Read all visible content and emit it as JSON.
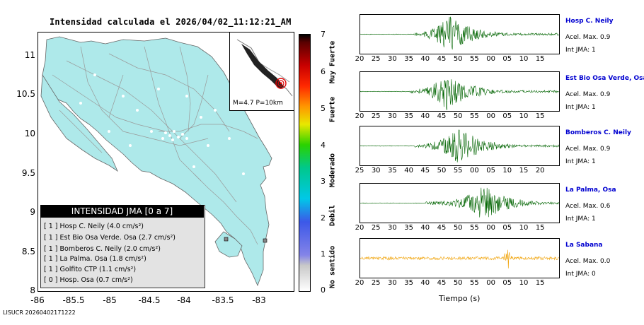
{
  "title": "Intensidad calculada el 2026/04/02_11:12:21_AM",
  "footer": "LISUCR 20260402171222",
  "map": {
    "y_ticks": [
      "11",
      "10.5",
      "10",
      "9.5",
      "9",
      "8.5",
      "8"
    ],
    "x_ticks": [
      "-86",
      "-85.5",
      "-85",
      "-84.5",
      "-84",
      "-83.5",
      "-83"
    ],
    "inset_label": "M=4.7 P=10km",
    "colors": {
      "land": "#aee9ea",
      "road": "#9a9a9a",
      "epicenter": "#e00000"
    }
  },
  "legend": {
    "header": "INTENSIDAD JMA [0 a 7]",
    "rows": [
      {
        "label": "[ 1 ]  Hosp C. Neily (4.0 cm/s²)"
      },
      {
        "label": "[ 1 ]  Est Bio Osa Verde. Osa (2.7 cm/s²)"
      },
      {
        "label": "[ 1 ]  Bomberos C. Neily (2.0 cm/s²)"
      },
      {
        "label": "[ 1 ]  La Palma. Osa (1.8 cm/s²)"
      },
      {
        "label": "[ 1 ]  Golfito CTP (1.1 cm/s²)"
      },
      {
        "label": "[ 0 ]  Hosp. Osa (0.7 cm/s²)"
      }
    ]
  },
  "scale": {
    "numbers": [
      "7",
      "6",
      "5",
      "4",
      "3",
      "2",
      "1",
      "0"
    ],
    "words": [
      "Muy Fuerte",
      "Fuerte",
      "Moderado",
      "Debil",
      "No sentido"
    ]
  },
  "panels": [
    {
      "station": "Hosp C. Neily",
      "acel": "Acel. Max. 0.9",
      "jma": "Int JMA: 1",
      "color": "#006400",
      "ticks": [
        "20",
        "25",
        "30",
        "35",
        "40",
        "45",
        "50",
        "55",
        "00",
        "05",
        "10",
        "15"
      ],
      "onset": 0.27,
      "peak": 0.45,
      "amp": 26
    },
    {
      "station": "Est Bio Osa Verde, Osa",
      "acel": "Acel. Max. 0.9",
      "jma": "Int JMA: 1",
      "color": "#006400",
      "ticks": [
        "20",
        "25",
        "30",
        "35",
        "40",
        "45",
        "50",
        "55",
        "00",
        "05",
        "10",
        "15"
      ],
      "onset": 0.25,
      "peak": 0.44,
      "amp": 26
    },
    {
      "station": "Bomberos C. Neily",
      "acel": "Acel. Max. 0.9",
      "jma": "Int JMA: 1",
      "color": "#006400",
      "ticks": [
        "25",
        "30",
        "35",
        "40",
        "45",
        "50",
        "55",
        "00",
        "05",
        "10",
        "15",
        "20"
      ],
      "onset": 0.27,
      "peak": 0.5,
      "amp": 26
    },
    {
      "station": "La Palma, Osa",
      "acel": "Acel. Max. 0.6",
      "jma": "Int JMA: 1",
      "color": "#006400",
      "ticks": [
        "20",
        "25",
        "30",
        "35",
        "40",
        "45",
        "50",
        "55",
        "00",
        "05",
        "10",
        "15"
      ],
      "onset": 0.33,
      "peak": 0.62,
      "amp": 26
    },
    {
      "station": "La Sabana",
      "acel": "Acel. Max. 0.0",
      "jma": "Int JMA: 0",
      "color": "#f0a000",
      "ticks": [
        "20",
        "25",
        "30",
        "35",
        "40",
        "45",
        "50",
        "55",
        "00",
        "05",
        "10",
        "15"
      ],
      "onset": 0.0,
      "peak": 0.74,
      "amp": 10
    }
  ],
  "xlabel": "Tiempo (s)"
}
